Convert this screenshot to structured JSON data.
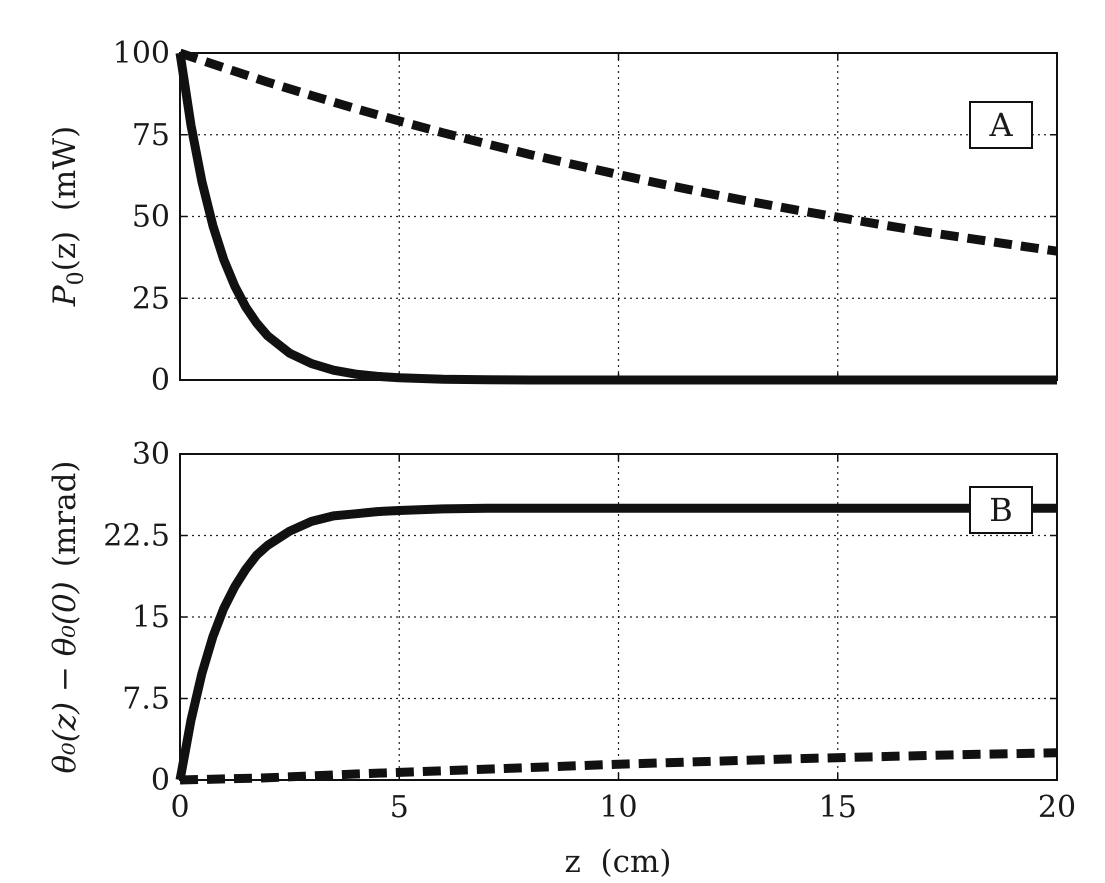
{
  "chart_data": [
    {
      "type": "line",
      "panel_label": "A",
      "xlabel": "",
      "ylabel_main": "P",
      "ylabel_sub": "0",
      "ylabel_tail": "(z)  (mW)",
      "xlim": [
        0,
        20
      ],
      "ylim": [
        0,
        100
      ],
      "yticks": [
        "0",
        "25",
        "50",
        "75",
        "100"
      ],
      "xticks": [],
      "grid": true,
      "series": [
        {
          "style": "solid",
          "x": [
            0,
            0.25,
            0.5,
            0.75,
            1,
            1.25,
            1.5,
            1.75,
            2,
            2.5,
            3,
            3.5,
            4,
            4.5,
            5,
            6,
            7,
            8,
            10,
            12,
            15,
            20
          ],
          "y": [
            100,
            77.9,
            60.7,
            47.2,
            36.8,
            28.7,
            22.3,
            17.4,
            13.5,
            8.2,
            5.0,
            3.0,
            1.8,
            1.1,
            0.7,
            0.2,
            0.1,
            0.0,
            0.0,
            0.0,
            0.0,
            0.0
          ]
        },
        {
          "style": "dashed",
          "x": [
            0,
            1,
            2,
            3,
            4,
            5,
            6,
            7,
            8,
            9,
            10,
            11,
            12,
            13,
            14,
            15,
            16,
            17,
            18,
            19,
            20
          ],
          "y": [
            100,
            95.5,
            91.1,
            87.0,
            83.0,
            79.2,
            75.6,
            72.2,
            68.9,
            65.8,
            62.8,
            59.9,
            57.2,
            54.6,
            52.1,
            49.8,
            47.5,
            45.3,
            43.3,
            41.3,
            39.4
          ]
        }
      ]
    },
    {
      "type": "line",
      "panel_label": "B",
      "xlabel": "z  (cm)",
      "ylabel_main": "θ₀(z) − θ₀(0)",
      "ylabel_tail": "(mrad)",
      "xlim": [
        0,
        20
      ],
      "ylim": [
        0,
        30
      ],
      "yticks": [
        "0",
        "7.5",
        "15",
        "22.5",
        "30"
      ],
      "xticks": [
        "0",
        "5",
        "10",
        "15",
        "20"
      ],
      "grid": true,
      "series": [
        {
          "style": "solid",
          "x": [
            0,
            0.25,
            0.5,
            0.75,
            1,
            1.25,
            1.5,
            1.75,
            2,
            2.5,
            3,
            3.5,
            4,
            4.5,
            5,
            6,
            7,
            8,
            10,
            12,
            15,
            20
          ],
          "y": [
            0,
            5.5,
            9.8,
            13.2,
            15.8,
            17.8,
            19.4,
            20.7,
            21.6,
            22.9,
            23.8,
            24.3,
            24.5,
            24.7,
            24.8,
            24.95,
            25.0,
            25.0,
            25.0,
            25.0,
            25.0,
            25.0
          ]
        },
        {
          "style": "dashed",
          "x": [
            0,
            2,
            4,
            6,
            8,
            10,
            12,
            14,
            16,
            18,
            20
          ],
          "y": [
            0,
            0.2,
            0.55,
            0.85,
            1.15,
            1.45,
            1.7,
            1.95,
            2.15,
            2.35,
            2.5
          ]
        }
      ]
    }
  ]
}
